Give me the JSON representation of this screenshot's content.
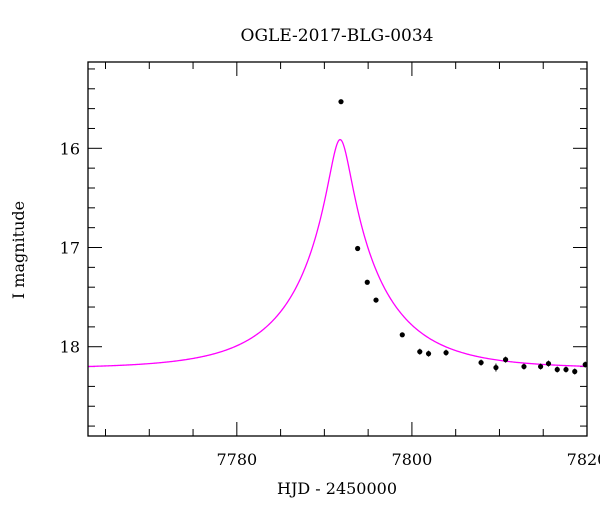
{
  "chart_data": {
    "type": "scatter",
    "title": "OGLE-2017-BLG-0034",
    "xlabel": "HJD - 2450000",
    "ylabel": "I magnitude",
    "xlim": [
      7763,
      7820
    ],
    "ylim": [
      18.9,
      15.13
    ],
    "y_inverted": true,
    "grid": false,
    "x_ticks": [
      {
        "value": 7780,
        "label": "7780"
      },
      {
        "value": 7800,
        "label": "7800"
      },
      {
        "value": 7820,
        "label": "7820"
      }
    ],
    "y_ticks": [
      {
        "value": 16,
        "label": "16"
      },
      {
        "value": 17,
        "label": "17"
      },
      {
        "value": 18,
        "label": "18"
      }
    ],
    "model": {
      "color": "#ff00ff",
      "t0": 7791.8,
      "tE": 10,
      "u0": 0.12,
      "baseline": 18.22,
      "x_range": [
        7763,
        7820
      ]
    },
    "series": [
      {
        "color": "#000000",
        "points": [
          {
            "x": 7791.9,
            "y": 15.53,
            "err": 0.01
          },
          {
            "x": 7793.8,
            "y": 17.01,
            "err": 0.01
          },
          {
            "x": 7794.9,
            "y": 17.35,
            "err": 0.02
          },
          {
            "x": 7795.9,
            "y": 17.53,
            "err": 0.02
          },
          {
            "x": 7798.9,
            "y": 17.88,
            "err": 0.02
          },
          {
            "x": 7800.9,
            "y": 18.05,
            "err": 0.03
          },
          {
            "x": 7801.9,
            "y": 18.07,
            "err": 0.03
          },
          {
            "x": 7803.9,
            "y": 18.06,
            "err": 0.03
          },
          {
            "x": 7807.9,
            "y": 18.16,
            "err": 0.03
          },
          {
            "x": 7809.6,
            "y": 18.21,
            "err": 0.04
          },
          {
            "x": 7810.7,
            "y": 18.13,
            "err": 0.03
          },
          {
            "x": 7812.8,
            "y": 18.2,
            "err": 0.03
          },
          {
            "x": 7814.7,
            "y": 18.2,
            "err": 0.03
          },
          {
            "x": 7815.6,
            "y": 18.17,
            "err": 0.03
          },
          {
            "x": 7816.6,
            "y": 18.23,
            "err": 0.03
          },
          {
            "x": 7817.6,
            "y": 18.23,
            "err": 0.03
          },
          {
            "x": 7818.6,
            "y": 18.25,
            "err": 0.03
          },
          {
            "x": 7819.8,
            "y": 18.18,
            "err": 0.03
          }
        ]
      }
    ]
  }
}
